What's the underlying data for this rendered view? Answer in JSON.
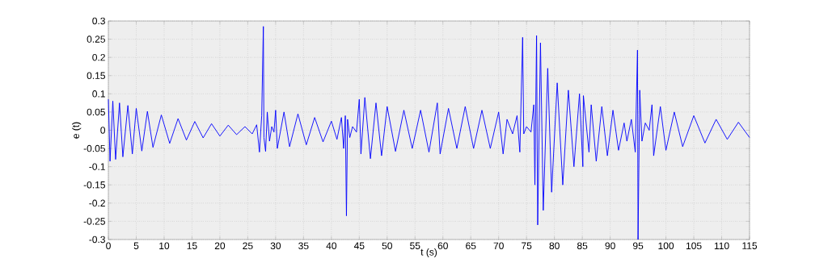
{
  "chart_data": {
    "type": "line",
    "xlabel": "t (s)",
    "ylabel": "e (t)",
    "color": "#0000ff",
    "grid": true,
    "xlim": [
      0,
      115
    ],
    "ylim": [
      -0.3,
      0.3
    ],
    "xticks": [
      0,
      5,
      10,
      15,
      20,
      25,
      30,
      35,
      40,
      45,
      50,
      55,
      60,
      65,
      70,
      75,
      80,
      85,
      90,
      95,
      100,
      105,
      110,
      115
    ],
    "yticks": [
      -0.3,
      -0.25,
      -0.2,
      -0.15,
      -0.1,
      -0.05,
      0,
      0.05,
      0.1,
      0.15,
      0.2,
      0.25,
      0.3
    ],
    "x": [
      0,
      0.3,
      0.8,
      1.3,
      2,
      2.6,
      3.5,
      4.3,
      5,
      6,
      7,
      8,
      9.5,
      11,
      12.5,
      14,
      15.5,
      17,
      18.5,
      20,
      21.5,
      23,
      24.5,
      25.8,
      26.6,
      27.1,
      27.5,
      27.8,
      27.9,
      28.2,
      28.5,
      28.9,
      29.3,
      29.7,
      30,
      30.3,
      31.5,
      32.5,
      34,
      35.5,
      37,
      38.5,
      40,
      41,
      41.8,
      42.2,
      42.5,
      42.7,
      42.9,
      43.3,
      43.8,
      44.5,
      45,
      45.3,
      46,
      47,
      48,
      49,
      50,
      51.5,
      53,
      54.5,
      56,
      57.5,
      59,
      59.5,
      61,
      62.5,
      64,
      65.5,
      67,
      68.5,
      70,
      70.8,
      71.5,
      72.5,
      73.3,
      73.8,
      74.3,
      74.5,
      75,
      75.8,
      76.3,
      76.5,
      76.8,
      77,
      77.5,
      78,
      78.8,
      79.5,
      80.5,
      81.5,
      82.5,
      83.5,
      84.5,
      85.1,
      85.2,
      86.2,
      86.6,
      87.5,
      88.5,
      89.5,
      90.5,
      91.5,
      92.5,
      93,
      93.8,
      94.5,
      94.9,
      95,
      95.3,
      95.7,
      96.3,
      97,
      97.5,
      97.8,
      99,
      100,
      101.5,
      103,
      105,
      107,
      109,
      111,
      113,
      115
    ],
    "values": [
      0.085,
      -0.085,
      0.08,
      -0.08,
      0.075,
      -0.073,
      0.068,
      -0.065,
      0.06,
      -0.057,
      0.052,
      -0.047,
      0.042,
      -0.036,
      0.032,
      -0.027,
      0.024,
      -0.021,
      0.018,
      -0.016,
      0.014,
      -0.012,
      0.01,
      -0.01,
      0.015,
      -0.06,
      0.04,
      0.285,
      -0.02,
      -0.058,
      0.05,
      -0.03,
      0.01,
      -0.005,
      0.055,
      -0.05,
      0.05,
      -0.045,
      0.045,
      -0.04,
      0.035,
      -0.032,
      0.025,
      -0.025,
      0.035,
      -0.05,
      0.04,
      -0.235,
      0.03,
      -0.02,
      0.01,
      -0.005,
      0.085,
      -0.065,
      0.09,
      -0.078,
      0.075,
      -0.07,
      0.065,
      -0.058,
      0.055,
      -0.05,
      0.055,
      -0.06,
      0.075,
      -0.065,
      0.06,
      -0.05,
      0.065,
      -0.05,
      0.055,
      -0.05,
      0.05,
      -0.065,
      0.03,
      -0.01,
      0.04,
      -0.06,
      0.255,
      -0.01,
      0.01,
      -0.005,
      0.07,
      -0.15,
      0.26,
      -0.26,
      0.24,
      -0.22,
      0.17,
      -0.17,
      0.13,
      -0.15,
      0.11,
      -0.1,
      0.1,
      -0.1,
      0.095,
      -0.06,
      0.07,
      -0.085,
      0.065,
      -0.07,
      0.055,
      -0.055,
      0.02,
      -0.03,
      0.03,
      -0.06,
      0.22,
      -0.3,
      0.11,
      -0.03,
      0.02,
      0,
      0.07,
      -0.07,
      0.065,
      -0.055,
      0.05,
      -0.045,
      0.04,
      -0.035,
      0.03,
      -0.025,
      0.022,
      -0.02
    ]
  }
}
